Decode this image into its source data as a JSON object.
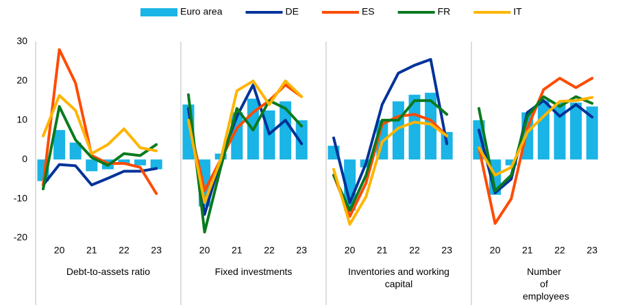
{
  "chart_data": [
    {
      "type": "combo",
      "title": "Debt-to-assets ratio",
      "categories": [
        null,
        "20",
        null,
        "21",
        null,
        "22",
        null,
        "23"
      ],
      "ylim": [
        -20,
        30
      ],
      "yticks": [
        -20,
        -10,
        0,
        10,
        20,
        30
      ],
      "series": [
        {
          "name": "Euro area",
          "kind": "bar",
          "color": "#1ab4e6",
          "values": [
            -5.5,
            7.5,
            4.3,
            -3,
            -2.5,
            -1,
            -1.5,
            -2.5
          ]
        },
        {
          "name": "DE",
          "kind": "line",
          "color": "#003299",
          "values": [
            -6.5,
            -1.3,
            -1.6,
            -6.5,
            -4.8,
            -3,
            -3,
            -2.3
          ]
        },
        {
          "name": "ES",
          "kind": "line",
          "color": "#ff4b00",
          "values": [
            -6.5,
            28,
            19.5,
            1,
            -1,
            -1,
            -2,
            -8.7
          ]
        },
        {
          "name": "FR",
          "kind": "line",
          "color": "#0a7a1e",
          "values": [
            -7.5,
            13.5,
            5,
            0.5,
            -1.5,
            1.5,
            1,
            3.8
          ]
        },
        {
          "name": "IT",
          "kind": "line",
          "color": "#ffb400",
          "values": [
            6,
            16.3,
            12.5,
            1.5,
            3.8,
            7.8,
            3,
            2.2
          ]
        }
      ]
    },
    {
      "type": "combo",
      "title": "Fixed investments",
      "categories": [
        null,
        "20",
        null,
        "21",
        null,
        "22",
        null,
        "23"
      ],
      "ylim": [
        -20,
        30
      ],
      "series": [
        {
          "name": "Euro area",
          "kind": "bar",
          "color": "#1ab4e6",
          "values": [
            14,
            -12,
            1.5,
            12,
            15.5,
            12.5,
            14.8,
            10
          ]
        },
        {
          "name": "DE",
          "kind": "line",
          "color": "#003299",
          "values": [
            13,
            -14,
            0,
            11,
            19,
            6.5,
            10,
            4
          ]
        },
        {
          "name": "ES",
          "kind": "line",
          "color": "#ff4b00",
          "values": [
            10,
            -8,
            0,
            8,
            12,
            15,
            19,
            16
          ]
        },
        {
          "name": "FR",
          "kind": "line",
          "color": "#0a7a1e",
          "values": [
            16.5,
            -18.5,
            -2,
            13,
            7.5,
            15,
            13,
            8.5
          ]
        },
        {
          "name": "IT",
          "kind": "line",
          "color": "#ffb400",
          "values": [
            10,
            -11,
            0,
            17.5,
            20,
            14,
            20,
            16
          ]
        }
      ]
    },
    {
      "type": "combo",
      "title": "Inventories and working capital",
      "categories": [
        null,
        "20",
        null,
        "21",
        null,
        "22",
        null,
        "23"
      ],
      "ylim": [
        -20,
        30
      ],
      "series": [
        {
          "name": "Euro area",
          "kind": "bar",
          "color": "#1ab4e6",
          "values": [
            3.5,
            -13,
            -2,
            10,
            14.8,
            16.5,
            17,
            7
          ]
        },
        {
          "name": "DE",
          "kind": "line",
          "color": "#003299",
          "values": [
            5.5,
            -11,
            -1,
            14,
            22,
            24,
            25.5,
            4
          ]
        },
        {
          "name": "ES",
          "kind": "line",
          "color": "#ff4b00",
          "values": [
            -4,
            -14.5,
            -6,
            9,
            11,
            11.5,
            10,
            6
          ]
        },
        {
          "name": "FR",
          "kind": "line",
          "color": "#0a7a1e",
          "values": [
            -4,
            -13,
            -4,
            10,
            10,
            15,
            15,
            11.5
          ]
        },
        {
          "name": "IT",
          "kind": "line",
          "color": "#ffb400",
          "values": [
            -2.5,
            -16.5,
            -9.5,
            4.5,
            8,
            9.5,
            9,
            6
          ]
        }
      ]
    },
    {
      "type": "combo",
      "title": "Number of employees",
      "categories": [
        null,
        "20",
        null,
        "21",
        null,
        "22",
        null,
        "23"
      ],
      "ylim": [
        -20,
        30
      ],
      "series": [
        {
          "name": "Euro area",
          "kind": "bar",
          "color": "#1ab4e6",
          "values": [
            10,
            -9,
            -1.5,
            12,
            15,
            14.5,
            14.5,
            13.5
          ]
        },
        {
          "name": "DE",
          "kind": "line",
          "color": "#003299",
          "values": [
            7.5,
            -8.5,
            -5,
            12,
            15,
            11,
            14,
            10.8
          ]
        },
        {
          "name": "ES",
          "kind": "line",
          "color": "#ff4b00",
          "values": [
            3,
            -16.3,
            -10,
            8,
            17.8,
            20.7,
            18.3,
            20.7
          ]
        },
        {
          "name": "FR",
          "kind": "line",
          "color": "#0a7a1e",
          "values": [
            13,
            -8,
            -4,
            11,
            16,
            13.5,
            16,
            14.3
          ]
        },
        {
          "name": "IT",
          "kind": "line",
          "color": "#ffb400",
          "values": [
            3,
            -4,
            -2,
            7,
            11,
            14.8,
            15,
            15.8
          ]
        }
      ]
    }
  ]
}
